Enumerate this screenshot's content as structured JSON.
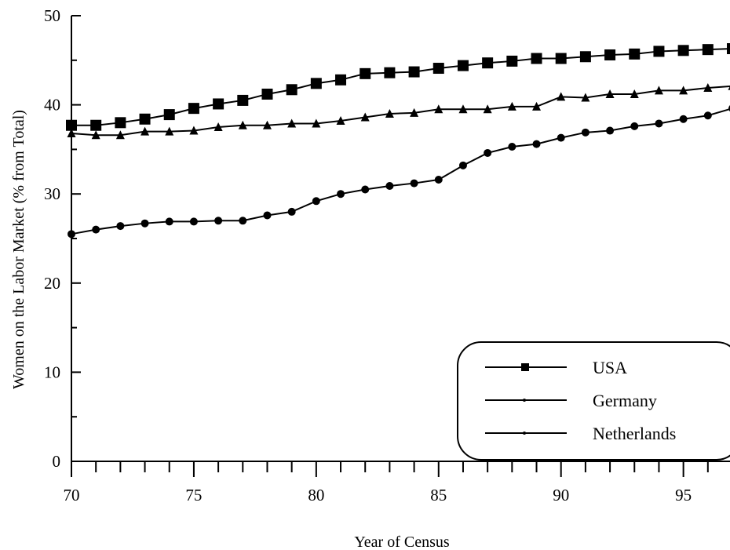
{
  "chart_data": {
    "type": "line",
    "xlabel": "Year of Census",
    "ylabel": "Women on the Labor Market (% from Total)",
    "xlim": [
      70,
      97
    ],
    "ylim": [
      0,
      50
    ],
    "x_ticks": [
      "70",
      "75",
      "80",
      "85",
      "90",
      "95"
    ],
    "y_ticks": [
      "0",
      "10",
      "20",
      "30",
      "40",
      "50"
    ],
    "grid": false,
    "legend_position": "bottom-right",
    "x": [
      70,
      71,
      72,
      73,
      74,
      75,
      76,
      77,
      78,
      79,
      80,
      81,
      82,
      83,
      84,
      85,
      86,
      87,
      88,
      89,
      90,
      91,
      92,
      93,
      94,
      95,
      96,
      97
    ],
    "series": [
      {
        "name": "USA",
        "marker": "square",
        "values": [
          37.7,
          37.7,
          38.0,
          38.4,
          38.9,
          39.6,
          40.1,
          40.5,
          41.2,
          41.7,
          42.4,
          42.8,
          43.5,
          43.6,
          43.7,
          44.1,
          44.4,
          44.7,
          44.9,
          45.2,
          45.2,
          45.4,
          45.6,
          45.7,
          46.0,
          46.1,
          46.2,
          46.3
        ]
      },
      {
        "name": "Germany",
        "marker": "triangle",
        "values": [
          36.8,
          36.6,
          36.6,
          37.0,
          37.0,
          37.1,
          37.5,
          37.7,
          37.7,
          37.9,
          37.9,
          38.2,
          38.6,
          39.0,
          39.1,
          39.5,
          39.5,
          39.5,
          39.8,
          39.8,
          40.9,
          40.8,
          41.2,
          41.2,
          41.6,
          41.6,
          41.9,
          42.1
        ]
      },
      {
        "name": "Netherlands",
        "marker": "circle",
        "values": [
          25.5,
          26.0,
          26.4,
          26.7,
          26.9,
          26.9,
          27.0,
          27.0,
          27.6,
          28.0,
          29.2,
          30.0,
          30.5,
          30.9,
          31.2,
          31.6,
          33.2,
          34.6,
          35.3,
          35.6,
          36.3,
          36.9,
          37.1,
          37.6,
          37.9,
          38.4,
          38.8,
          39.6
        ]
      }
    ]
  }
}
